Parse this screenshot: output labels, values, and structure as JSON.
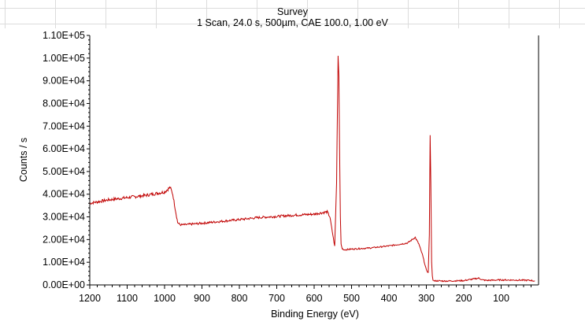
{
  "chart_data": {
    "type": "line",
    "title": "Survey",
    "subtitle": "1 Scan,  24.0 s,  500µm,  CAE 100.0,  1.00 eV",
    "xlabel": "Binding Energy (eV)",
    "ylabel": "Counts / s",
    "xlim": [
      1200,
      0
    ],
    "ylim": [
      0,
      110000
    ],
    "x_reversed": true,
    "grid": false,
    "x_ticks": [
      "1200",
      "1100",
      "1000",
      "900",
      "800",
      "700",
      "600",
      "500",
      "400",
      "300",
      "200",
      "100"
    ],
    "y_ticks": [
      "0.00E+00",
      "1.00E+04",
      "2.00E+04",
      "3.00E+04",
      "4.00E+04",
      "5.00E+04",
      "6.00E+04",
      "7.00E+04",
      "8.00E+04",
      "9.00E+04",
      "1.00E+05",
      "1.10E+05"
    ],
    "series": [
      {
        "color": "#c00000",
        "x": [
          1200,
          1150,
          1100,
          1050,
          1000,
          985,
          978,
          972,
          965,
          958,
          950,
          900,
          850,
          800,
          750,
          700,
          650,
          600,
          580,
          565,
          558,
          550,
          545,
          540,
          536,
          534,
          532,
          530,
          528,
          525,
          520,
          500,
          450,
          400,
          350,
          330,
          320,
          310,
          300,
          295,
          292,
          290,
          288,
          286,
          284,
          282,
          280,
          270,
          250,
          200,
          160,
          150,
          140,
          100,
          50,
          20,
          10
        ],
        "values": [
          36000,
          37500,
          38500,
          39500,
          41000,
          43000,
          40000,
          34000,
          27500,
          26500,
          26500,
          27200,
          28000,
          28800,
          29700,
          30200,
          30800,
          31200,
          31800,
          32200,
          30000,
          22000,
          17000,
          45000,
          101000,
          92000,
          60000,
          30000,
          18000,
          16000,
          15500,
          15800,
          16300,
          17200,
          18500,
          21000,
          18000,
          13000,
          6500,
          5500,
          22000,
          66000,
          45000,
          10000,
          4000,
          2000,
          1800,
          1800,
          1700,
          1900,
          3000,
          2200,
          2000,
          2200,
          2100,
          2000,
          1700
        ]
      }
    ]
  }
}
